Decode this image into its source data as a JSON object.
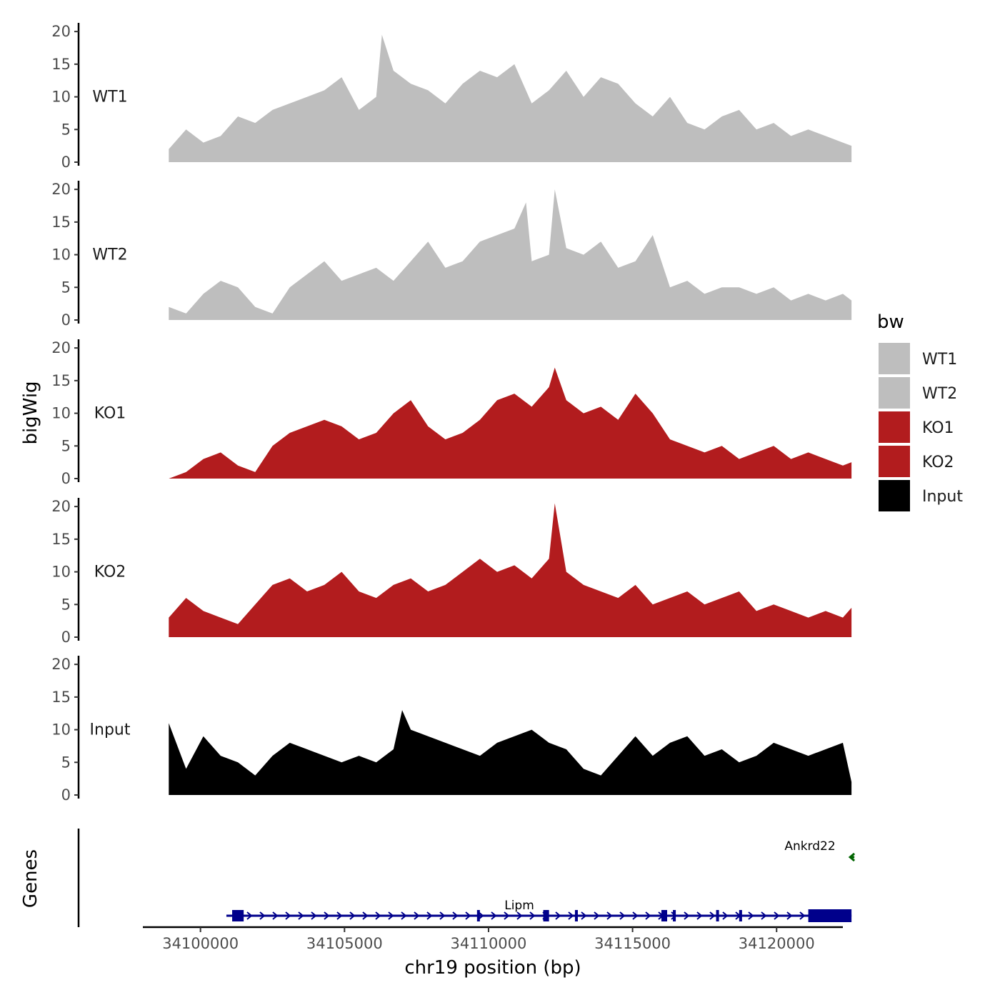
{
  "chart_data": {
    "type": "area",
    "title": "",
    "xlabel": "chr19 position (bp)",
    "ylabel": "bigWig",
    "ylim": [
      0,
      21
    ],
    "yticks": [
      0,
      5,
      10,
      15,
      20
    ],
    "xlim": [
      34098000,
      34122300
    ],
    "xticks": [
      34100000,
      34105000,
      34110000,
      34115000,
      34120000
    ],
    "xtick_labels": [
      "34100000",
      "34105000",
      "34110000",
      "34115000",
      "34120000"
    ],
    "legend_title": "bw",
    "legend_position": "right",
    "series": [
      {
        "name": "WT1",
        "label": "WT1",
        "color": "#BEBEBE",
        "x": [
          34098900,
          34099500,
          34100100,
          34100700,
          34101300,
          34101900,
          34102500,
          34103100,
          34103700,
          34104300,
          34104900,
          34105500,
          34106100,
          34106300,
          34106700,
          34107300,
          34107900,
          34108500,
          34109100,
          34109700,
          34110300,
          34110900,
          34111500,
          34112100,
          34112700,
          34113300,
          34113900,
          34114500,
          34115100,
          34115700,
          34116300,
          34116900,
          34117500,
          34118100,
          34118700,
          34119300,
          34119900,
          34120500,
          34121100,
          34121700,
          34122300,
          34122600
        ],
        "values": [
          2,
          5,
          3,
          4,
          7,
          6,
          8,
          9,
          10,
          11,
          13,
          8,
          10,
          19.5,
          14,
          12,
          11,
          9,
          12,
          14,
          13,
          15,
          9,
          11,
          14,
          10,
          13,
          12,
          9,
          7,
          10,
          6,
          5,
          7,
          8,
          5,
          6,
          4,
          5,
          4,
          3,
          2.5
        ]
      },
      {
        "name": "WT2",
        "label": "WT2",
        "color": "#BEBEBE",
        "x": [
          34098900,
          34099500,
          34100100,
          34100700,
          34101300,
          34101900,
          34102500,
          34103100,
          34103700,
          34104300,
          34104900,
          34105500,
          34106100,
          34106700,
          34107300,
          34107900,
          34108500,
          34109100,
          34109700,
          34110300,
          34110900,
          34111300,
          34111500,
          34112100,
          34112300,
          34112700,
          34113300,
          34113900,
          34114500,
          34115100,
          34115700,
          34116300,
          34116900,
          34117500,
          34118100,
          34118700,
          34119300,
          34119900,
          34120500,
          34121100,
          34121700,
          34122300,
          34122600
        ],
        "values": [
          2,
          1,
          4,
          6,
          5,
          2,
          1,
          5,
          7,
          9,
          6,
          7,
          8,
          6,
          9,
          12,
          8,
          9,
          12,
          13,
          14,
          18,
          9,
          10,
          20,
          11,
          10,
          12,
          8,
          9,
          13,
          5,
          6,
          4,
          5,
          5,
          4,
          5,
          3,
          4,
          3,
          4,
          3
        ]
      },
      {
        "name": "KO1",
        "label": "KO1",
        "color": "#B21C1E",
        "x": [
          34098900,
          34099500,
          34100100,
          34100700,
          34101300,
          34101900,
          34102500,
          34103100,
          34103700,
          34104300,
          34104900,
          34105500,
          34106100,
          34106700,
          34107300,
          34107900,
          34108500,
          34109100,
          34109700,
          34110300,
          34110900,
          34111500,
          34112100,
          34112300,
          34112700,
          34113300,
          34113900,
          34114500,
          34115100,
          34115700,
          34116300,
          34116900,
          34117500,
          34118100,
          34118700,
          34119300,
          34119900,
          34120500,
          34121100,
          34121700,
          34122300,
          34122600
        ],
        "values": [
          0,
          1,
          3,
          4,
          2,
          1,
          5,
          7,
          8,
          9,
          8,
          6,
          7,
          10,
          12,
          8,
          6,
          7,
          9,
          12,
          13,
          11,
          14,
          17,
          12,
          10,
          11,
          9,
          13,
          10,
          6,
          5,
          4,
          5,
          3,
          4,
          5,
          3,
          4,
          3,
          2,
          2.5
        ]
      },
      {
        "name": "KO2",
        "label": "KO2",
        "color": "#B21C1E",
        "x": [
          34098900,
          34099500,
          34100100,
          34100700,
          34101300,
          34101900,
          34102500,
          34103100,
          34103700,
          34104300,
          34104900,
          34105500,
          34106100,
          34106700,
          34107300,
          34107900,
          34108500,
          34109100,
          34109700,
          34110300,
          34110900,
          34111500,
          34112100,
          34112300,
          34112700,
          34113300,
          34113900,
          34114500,
          34115100,
          34115700,
          34116300,
          34116900,
          34117500,
          34118100,
          34118700,
          34119300,
          34119900,
          34120500,
          34121100,
          34121700,
          34122300,
          34122600
        ],
        "values": [
          3,
          6,
          4,
          3,
          2,
          5,
          8,
          9,
          7,
          8,
          10,
          7,
          6,
          8,
          9,
          7,
          8,
          10,
          12,
          10,
          11,
          9,
          12,
          20.5,
          10,
          8,
          7,
          6,
          8,
          5,
          6,
          7,
          5,
          6,
          7,
          4,
          5,
          4,
          3,
          4,
          3,
          4.5
        ]
      },
      {
        "name": "Input",
        "label": "Input",
        "color": "#000000",
        "x": [
          34098900,
          34099500,
          34100100,
          34100700,
          34101300,
          34101900,
          34102500,
          34103100,
          34103700,
          34104300,
          34104900,
          34105500,
          34106100,
          34106700,
          34107000,
          34107300,
          34107900,
          34108500,
          34109100,
          34109700,
          34110300,
          34110900,
          34111500,
          34112100,
          34112700,
          34113300,
          34113900,
          34114500,
          34115100,
          34115700,
          34116300,
          34116900,
          34117500,
          34118100,
          34118700,
          34119300,
          34119900,
          34120500,
          34121100,
          34121700,
          34122300,
          34122600
        ],
        "values": [
          11,
          4,
          9,
          6,
          5,
          3,
          6,
          8,
          7,
          6,
          5,
          6,
          5,
          7,
          13,
          10,
          9,
          8,
          7,
          6,
          8,
          9,
          10,
          8,
          7,
          4,
          3,
          6,
          9,
          6,
          8,
          9,
          6,
          7,
          5,
          6,
          8,
          7,
          6,
          7,
          8,
          2
        ]
      }
    ],
    "genes_track": {
      "ylabel": "Genes",
      "genes": [
        {
          "name": "Lipm",
          "start": 34100900,
          "end": 34122600,
          "strand": "+",
          "color": "#00008B",
          "exons": [
            [
              34101100,
              34101500
            ],
            [
              34109600,
              34109700
            ],
            [
              34111900,
              34112100
            ],
            [
              34113000,
              34113100
            ],
            [
              34116000,
              34116200
            ],
            [
              34116400,
              34116500
            ],
            [
              34117900,
              34118000
            ],
            [
              34118700,
              34118800
            ],
            [
              34121100,
              34122600
            ]
          ]
        },
        {
          "name": "Ankrd22",
          "start": 34122600,
          "end": 34122700,
          "strand": "-",
          "color": "#006400",
          "exons": [
            [
              34122600,
              34122700
            ]
          ]
        }
      ]
    }
  }
}
